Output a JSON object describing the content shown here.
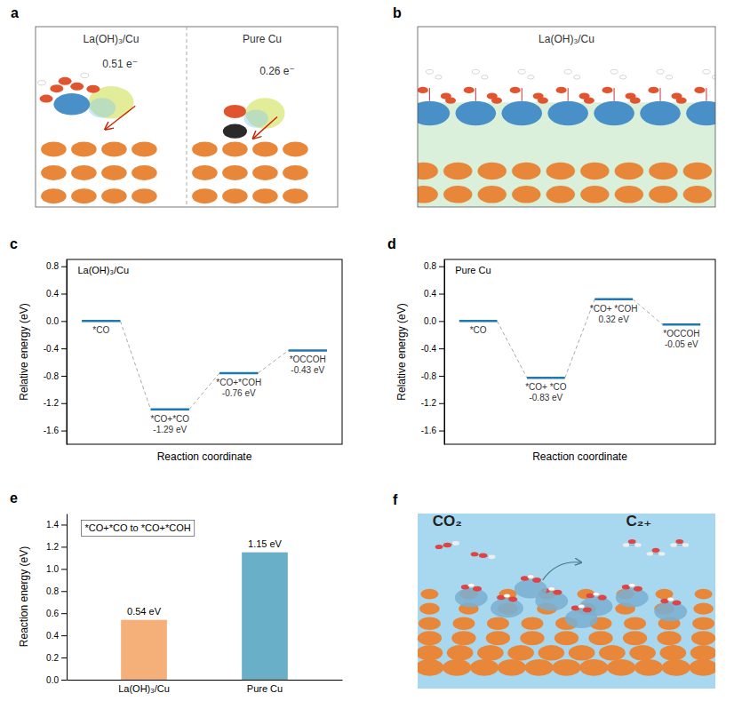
{
  "chart_data": [
    {
      "type": "illustration",
      "panel": "a",
      "annotations": [
        "La(OH)₃/Cu",
        "Pure Cu",
        "0.51 e⁻",
        "0.26 e⁻"
      ]
    },
    {
      "type": "illustration",
      "panel": "b",
      "title": "La(OH)₃/Cu"
    },
    {
      "type": "energy_diagram",
      "panel": "c",
      "title": "La(OH)₃/Cu",
      "xlabel": "Reaction coordinate",
      "ylabel": "Relative energy (eV)",
      "categories": [
        "*CO",
        "*CO+*CO",
        "*CO+*COH",
        "*OCCOH"
      ],
      "values": [
        0.0,
        -1.29,
        -0.76,
        -0.43
      ],
      "value_labels": [
        null,
        "-1.29 eV",
        "-0.76 eV",
        "-0.43 eV"
      ],
      "data_labels": true,
      "ylim": [
        -1.8,
        0.9
      ],
      "yticks": [
        0.8,
        0.4,
        {
          "value": 0,
          "label": "0.0"
        },
        -0.4,
        -0.8,
        -1.2,
        -1.6
      ],
      "tick_labels": "y"
    },
    {
      "type": "energy_diagram",
      "panel": "d",
      "title": "Pure Cu",
      "xlabel": "Reaction coordinate",
      "ylabel": "Relative energy (eV)",
      "categories": [
        "*CO",
        "*CO+ *CO",
        "*CO+ *COH",
        "*OCCOH"
      ],
      "values": [
        0.0,
        -0.83,
        0.32,
        -0.05
      ],
      "value_labels": [
        null,
        "-0.83 eV",
        "0.32 eV",
        "-0.05 eV"
      ],
      "data_labels": true,
      "ylim": [
        -1.8,
        0.9
      ],
      "yticks": [
        0.8,
        0.4,
        {
          "value": 0,
          "label": "0.0"
        },
        -0.4,
        -0.8,
        -1.2,
        -1.6
      ],
      "tick_labels": "y"
    },
    {
      "type": "bar",
      "panel": "e",
      "title": "*CO+*CO to *CO+*COH",
      "ylabel": "Reaction energy (eV)",
      "categories": [
        "La(OH)₃/Cu",
        "Pure Cu"
      ],
      "values": [
        0.54,
        1.15
      ],
      "value_labels": [
        "0.54 eV",
        "1.15 eV"
      ],
      "data_labels": true,
      "colors": [
        "#F5B07A",
        "#6AAFC8"
      ],
      "ylim": [
        0.0,
        1.5
      ],
      "yticks": [
        {
          "value": 0,
          "label": "0.0"
        },
        0.2,
        0.4,
        0.6,
        0.8,
        {
          "value": 1,
          "label": "1.0"
        },
        1.2,
        1.4
      ]
    },
    {
      "type": "illustration",
      "panel": "f",
      "annotations": [
        "CO₂",
        "C₂₊"
      ]
    }
  ]
}
